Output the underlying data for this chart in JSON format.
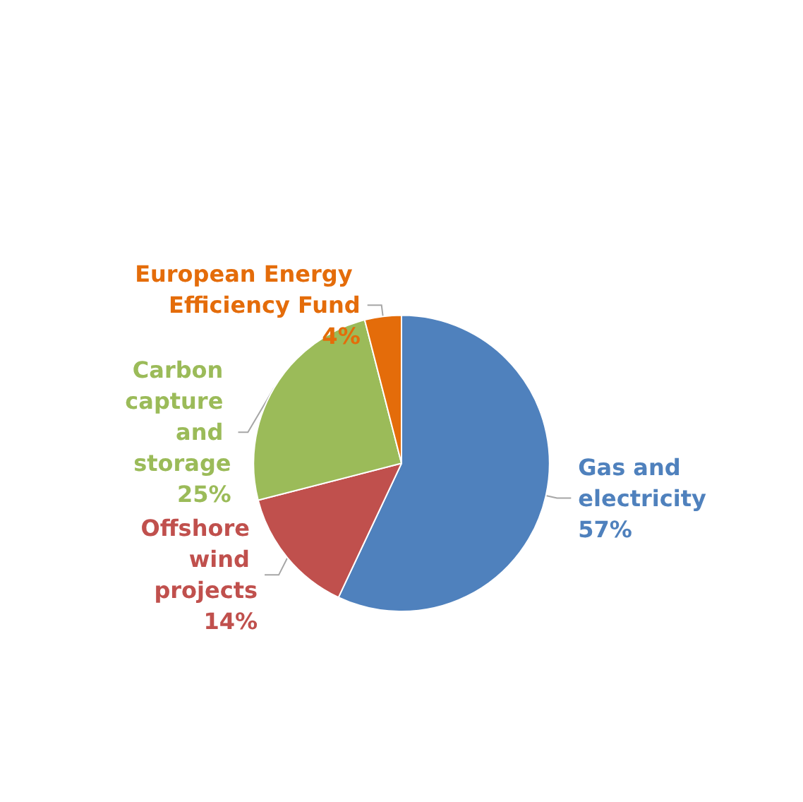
{
  "chart_data": {
    "type": "pie",
    "categories": [
      "Gas and electricity",
      "Offshore wind projects",
      "Carbon capture and storage",
      "European Energy Efficiency Fund"
    ],
    "values": [
      57,
      14,
      25,
      4
    ],
    "colors": [
      "#4f81bd",
      "#c0504d",
      "#9bbb59",
      "#e46c0a"
    ],
    "value_labels": [
      "57%",
      "14%",
      "25%",
      "4%"
    ],
    "legend": false
  }
}
